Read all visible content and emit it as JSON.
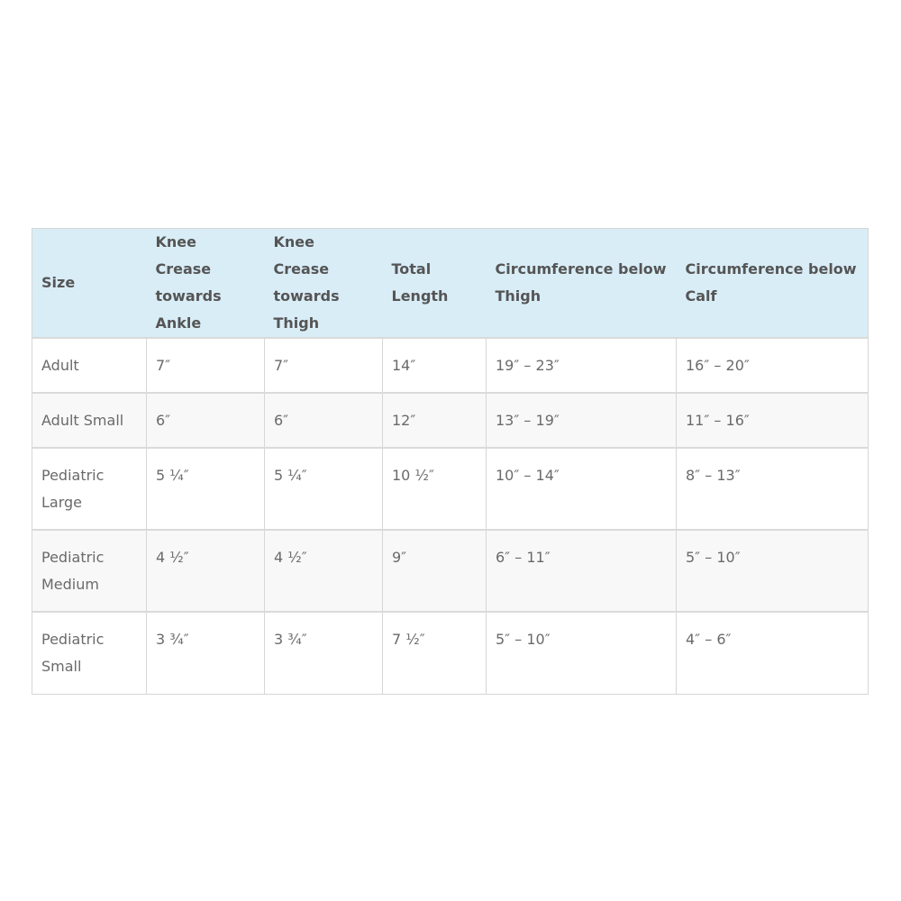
{
  "table": {
    "headers": [
      "Size",
      "Knee Crease towards Ankle",
      "Knee Crease towards Thigh",
      "Total Length",
      "Circumference below Thigh",
      "Circumference below Calf"
    ],
    "rows": [
      [
        "Adult",
        "7″",
        "7″",
        "14″",
        "19″ – 23″",
        "16″ – 20″"
      ],
      [
        "Adult Small",
        "6″",
        "6″",
        "12″",
        "13″ – 19″",
        "11″ – 16″"
      ],
      [
        "Pediatric Large",
        "5 ¼″",
        "5 ¼″",
        "10 ½″",
        "10″ – 14″",
        "8″ – 13″"
      ],
      [
        "Pediatric Medium",
        "4 ½″",
        "4 ½″",
        "9″",
        "6″ – 11″",
        "5″ – 10″"
      ],
      [
        "Pediatric Small",
        "3 ¾″",
        "3 ¾″",
        "7 ½″",
        "5″ – 10″",
        "4″ – 6″"
      ]
    ]
  },
  "colors": {
    "header_bg": "#d9edf7",
    "alt_row_bg": "#f8f8f8",
    "border": "#d6d6d6"
  }
}
